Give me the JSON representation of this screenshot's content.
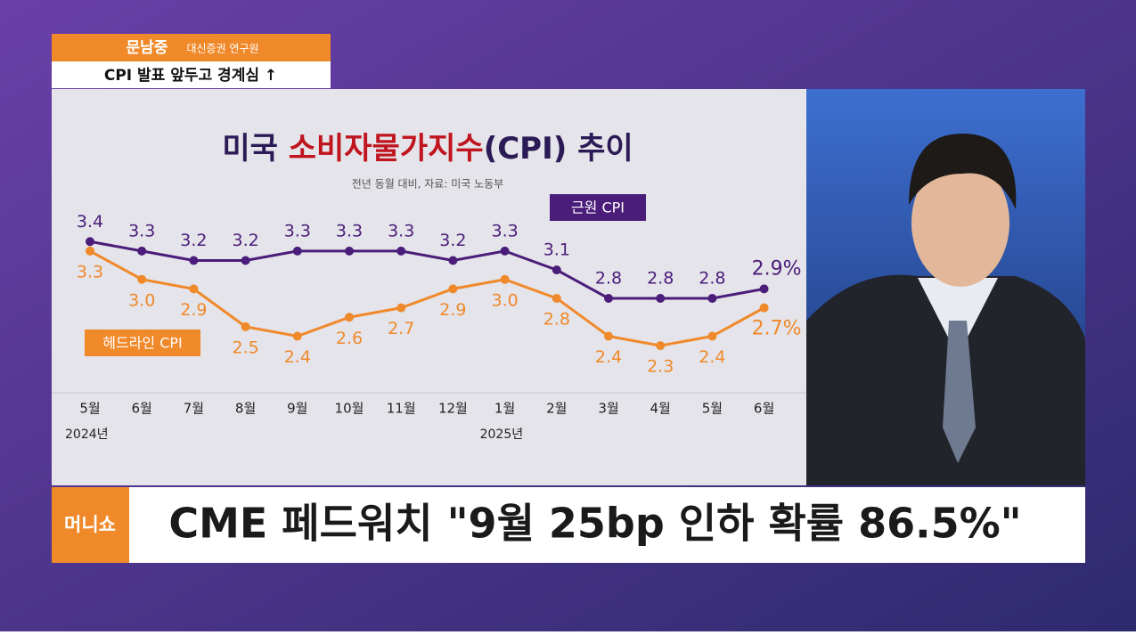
{
  "speaker": {
    "name": "문남중",
    "affiliation": "대신증권 연구원"
  },
  "topic": "CPI 발표 앞두고 경계심 ↑",
  "headline": "CME 페드워치 \"9월 25bp 인하 확률 86.5%\"",
  "logo": "머니쇼",
  "chart_data": {
    "type": "line",
    "title": [
      "미국 ",
      "소비자물가지수",
      "(CPI) 추이"
    ],
    "title_colors": [
      "#2b1a55",
      "#c0141e",
      "#2b1a55"
    ],
    "subtitle": "전년 동월 대비, 자료: 미국 노동부",
    "categories": [
      "5월",
      "6월",
      "7월",
      "8월",
      "9월",
      "10월",
      "11월",
      "12월",
      "1월",
      "2월",
      "3월",
      "4월",
      "5월",
      "6월"
    ],
    "year_labels": [
      "2024년",
      null,
      null,
      null,
      null,
      null,
      null,
      null,
      "2025년",
      null,
      null,
      null,
      null,
      null
    ],
    "ylim": [
      2.0,
      3.6
    ],
    "series": [
      {
        "name": "근원 CPI",
        "color": "#4b1d7a",
        "values": [
          3.4,
          3.3,
          3.2,
          3.2,
          3.3,
          3.3,
          3.3,
          3.2,
          3.3,
          3.1,
          2.8,
          2.8,
          2.8,
          2.9
        ],
        "value_labels": [
          "3.4",
          "3.3",
          "3.2",
          "3.2",
          "3.3",
          "3.3",
          "3.3",
          "3.2",
          "3.3",
          "3.1",
          "2.8",
          "2.8",
          "2.8",
          "2.9%"
        ]
      },
      {
        "name": "헤드라인 CPI",
        "color": "#f0892a",
        "values": [
          3.3,
          3.0,
          2.9,
          2.5,
          2.4,
          2.6,
          2.7,
          2.9,
          3.0,
          2.8,
          2.4,
          2.3,
          2.4,
          2.7
        ],
        "value_labels": [
          "3.3",
          "3.0",
          "2.9",
          "2.5",
          "2.4",
          "2.6",
          "2.7",
          "2.9",
          "3.0",
          "2.8",
          "2.4",
          "2.3",
          "2.4",
          "2.7%"
        ]
      }
    ]
  }
}
